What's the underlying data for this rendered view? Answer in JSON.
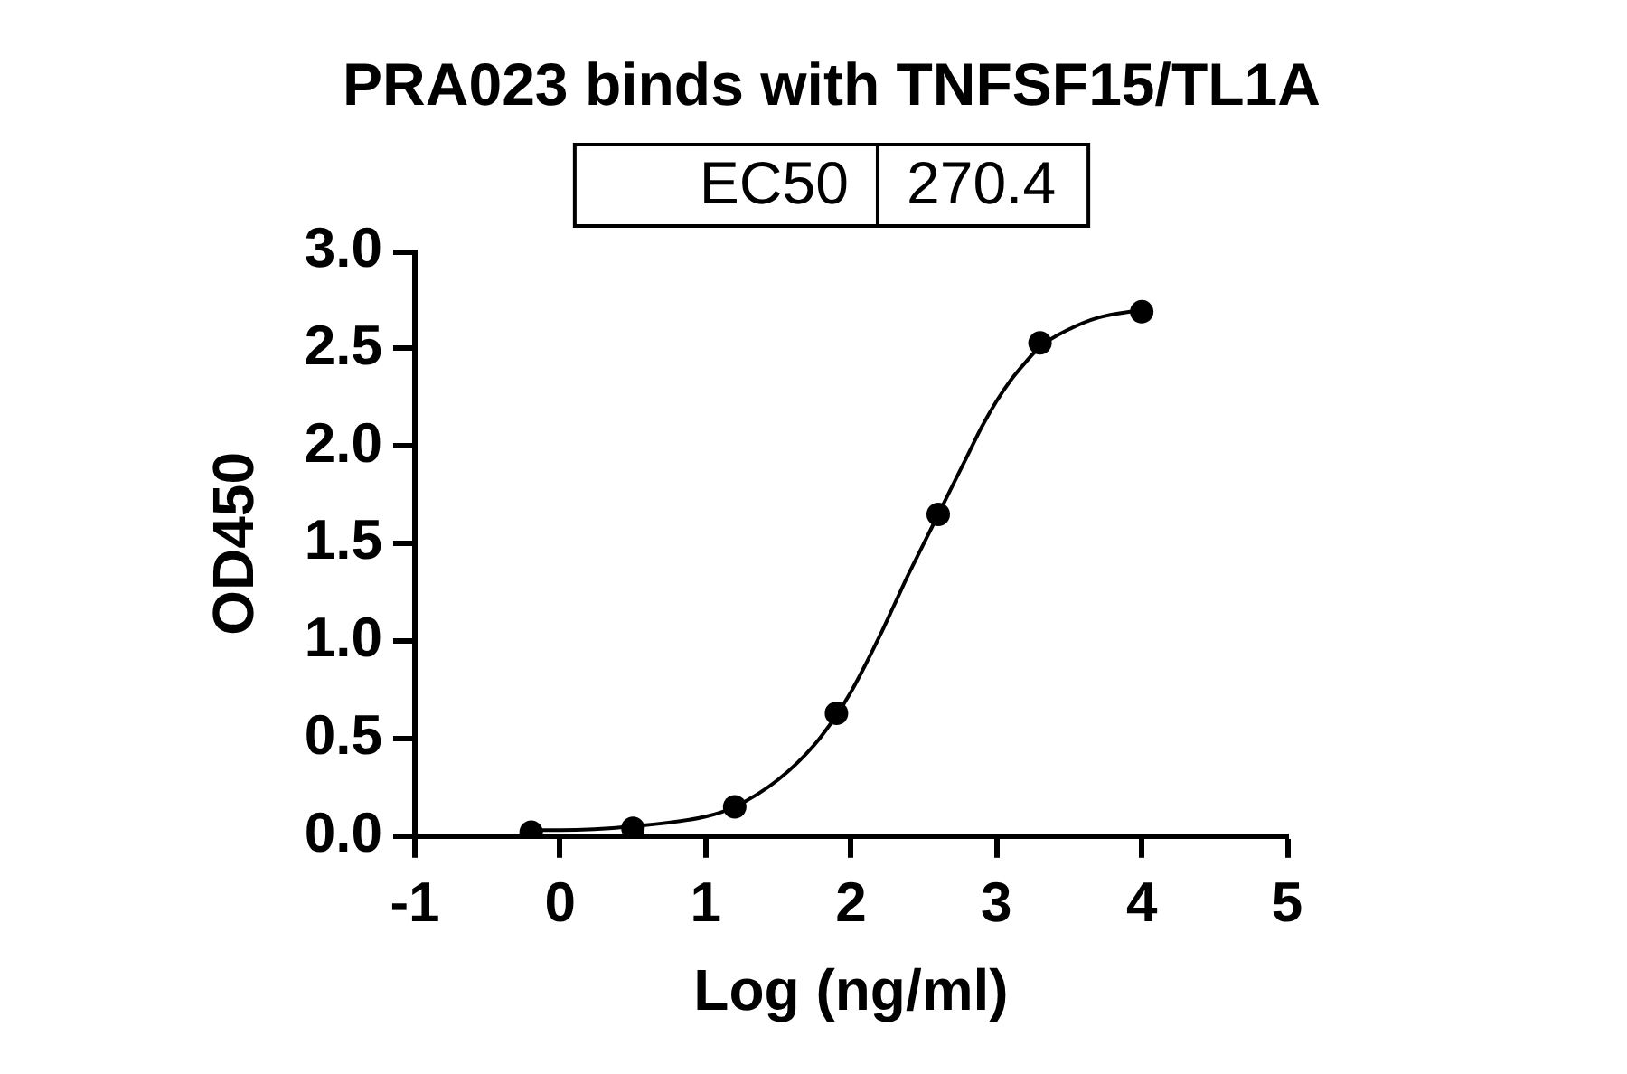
{
  "chart_data": {
    "type": "scatter",
    "title": "PRA023 binds with TNFSF15/TL1A",
    "xlabel": "Log (ng/ml)",
    "ylabel": "OD450",
    "annotations": [
      "EC50",
      "270.4"
    ],
    "xlim": [
      -1,
      5
    ],
    "xticks": [
      -1,
      0,
      1,
      2,
      3,
      4,
      5
    ],
    "ylim": [
      0,
      3
    ],
    "yticks": [
      {
        "value": 0,
        "label": "0.0"
      },
      {
        "value": 0.5,
        "label": "0.5"
      },
      {
        "value": 1,
        "label": "1.0"
      },
      {
        "value": 1.5,
        "label": "1.5"
      },
      {
        "value": 2,
        "label": "2.0"
      },
      {
        "value": 2.5,
        "label": "2.5"
      },
      {
        "value": 3,
        "label": "3.0"
      }
    ],
    "marker": "circle",
    "line_style": "solid",
    "series": [
      {
        "color": "#000000",
        "x": [
          -0.2,
          0.5,
          1.2,
          1.9,
          2.6,
          3.3,
          4.0
        ],
        "values": [
          0.02,
          0.04,
          0.15,
          0.63,
          1.65,
          2.53,
          2.69
        ]
      },
      {
        "type": "line",
        "color": "#000000",
        "marker": "none",
        "x": [
          -0.2,
          0.0,
          0.5,
          1.0,
          1.2,
          1.5,
          1.75,
          1.9,
          2.0,
          2.1,
          2.2,
          2.3,
          2.4,
          2.5,
          2.6,
          2.7,
          2.8,
          2.9,
          3.0,
          3.1,
          3.2,
          3.3,
          3.5,
          3.7,
          4.0
        ],
        "values": [
          0.03,
          0.03,
          0.05,
          0.1,
          0.15,
          0.29,
          0.47,
          0.62,
          0.74,
          0.88,
          1.03,
          1.19,
          1.35,
          1.5,
          1.65,
          1.8,
          1.95,
          2.1,
          2.23,
          2.34,
          2.43,
          2.51,
          2.6,
          2.66,
          2.7
        ]
      }
    ]
  }
}
